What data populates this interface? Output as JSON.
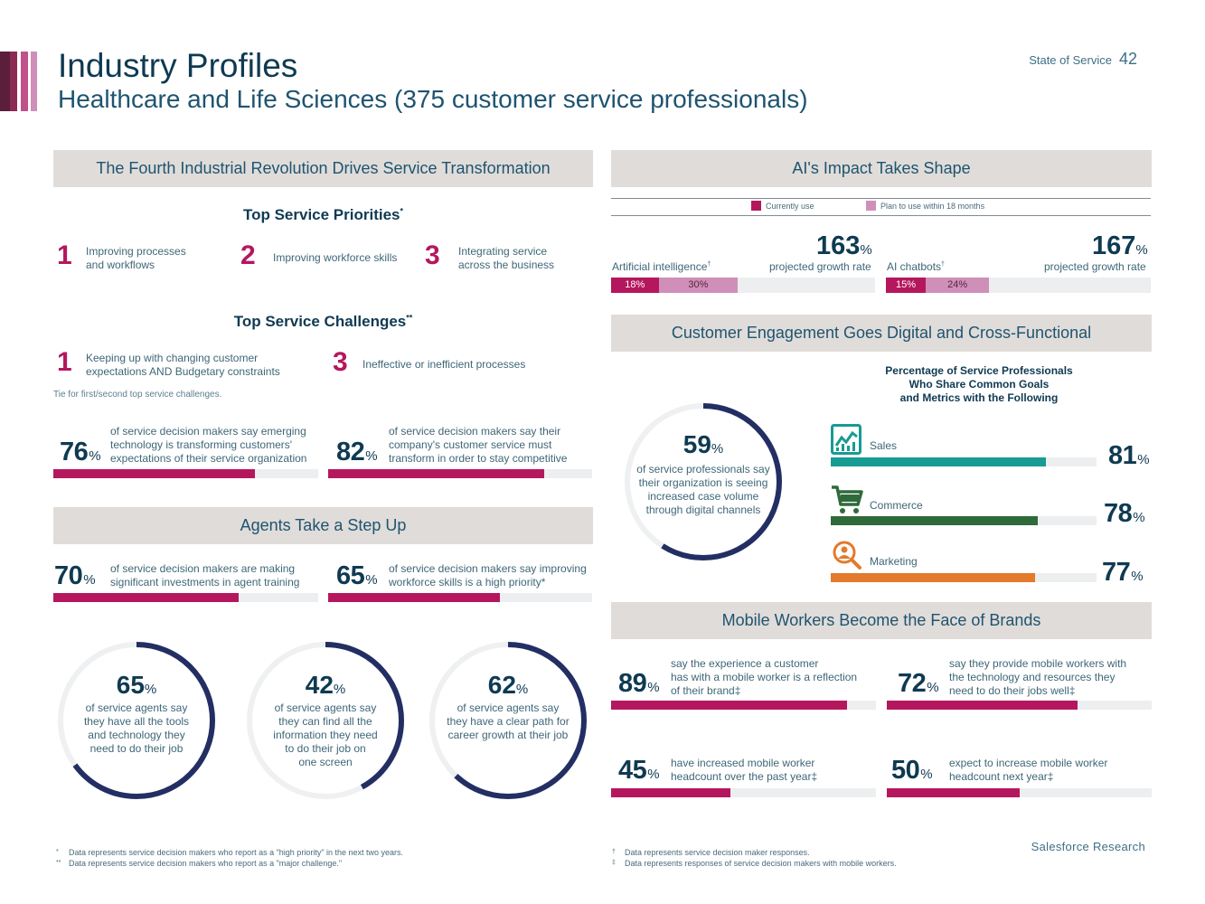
{
  "header": {
    "title": "Industry Profiles",
    "subtitle": "Healthcare and Life Sciences (375 customer service professionals)",
    "report_name": "State of Service",
    "page_number": "42"
  },
  "colors": {
    "magenta": "#b5175e",
    "pink": "#cf8fb8",
    "navy": "#232e63",
    "teal": "#179b93",
    "green": "#2f6b3a",
    "orange": "#e37a2c",
    "section_bg": "#e0dcd9"
  },
  "fourth_revolution": {
    "section_title": "The Fourth Industrial Revolution Drives Service Transformation",
    "priorities_heading": "Top Service Priorities",
    "priorities_mark": "*",
    "priorities": [
      {
        "rank": "1",
        "text_line1": "Improving processes",
        "text_line2": "and workflows"
      },
      {
        "rank": "2",
        "text_line1": "Improving workforce skills",
        "text_line2": ""
      },
      {
        "rank": "3",
        "text_line1": "Integrating service",
        "text_line2": "across the business"
      }
    ],
    "challenges_heading": "Top Service Challenges",
    "challenges_mark": "**",
    "challenges": [
      {
        "rank": "1",
        "text_line1": "Keeping up with changing customer",
        "text_line2": "expectations AND Budgetary constraints"
      },
      {
        "rank": "3",
        "text_line1": "Ineffective or inefficient processes",
        "text_line2": ""
      }
    ],
    "tie_note": "Tie for first/second top service challenges.",
    "stats": [
      {
        "value": "76",
        "percent": 76,
        "line1": "of service decision makers say emerging",
        "line2": "technology is transforming customers'",
        "line3": "expectations of their service organization"
      },
      {
        "value": "82",
        "percent": 82,
        "line1": "of service decision makers say their",
        "line2": "company's customer service must",
        "line3": "transform in order to stay competitive"
      }
    ]
  },
  "agents": {
    "section_title": "Agents Take a Step Up",
    "stats": [
      {
        "value": "70",
        "percent": 70,
        "line1": "of service decision makers are making",
        "line2": "significant investments in agent training"
      },
      {
        "value": "65",
        "percent": 65,
        "line1": "of service decision makers say improving",
        "line2": "workforce skills is a high priority*"
      }
    ],
    "rings": [
      {
        "value": "65",
        "percent": 65,
        "lines": [
          "of service agents say",
          "they have all the tools",
          "and technology they",
          "need to do their job"
        ]
      },
      {
        "value": "42",
        "percent": 42,
        "lines": [
          "of service agents say",
          "they can find all the",
          "information they need",
          "to do their job on",
          "one screen"
        ]
      },
      {
        "value": "62",
        "percent": 62,
        "lines": [
          "of service agents say",
          "they have a clear path for",
          "career growth at their job"
        ]
      }
    ]
  },
  "ai": {
    "section_title": "AI's Impact Takes Shape",
    "legend_current": "Currently use",
    "legend_plan": "Plan to use within 18 months",
    "items": [
      {
        "label": "Artificial intelligence",
        "mark": "†",
        "current": "18%",
        "current_value": 18,
        "plan": "30%",
        "plan_value": 30,
        "growth": "163",
        "growth_label": "projected growth rate"
      },
      {
        "label": "AI chatbots",
        "mark": "†",
        "current": "15%",
        "current_value": 15,
        "plan": "24%",
        "plan_value": 24,
        "growth": "167",
        "growth_label": "projected growth rate"
      }
    ]
  },
  "customer_engagement": {
    "section_title": "Customer Engagement Goes Digital and Cross-Functional",
    "ring": {
      "value": "59",
      "percent": 59,
      "lines": [
        "of service professionals say",
        "their organization is seeing",
        "increased case volume",
        "through digital channels"
      ]
    },
    "chart_heading_lines": [
      "Percentage of Service Professionals",
      "Who Share Common Goals",
      "and Metrics with the Following"
    ],
    "items": [
      {
        "label": "Sales",
        "value": "81",
        "percent": 81,
        "icon": "sales-chart-icon"
      },
      {
        "label": "Commerce",
        "value": "78",
        "percent": 78,
        "icon": "shopping-cart-icon"
      },
      {
        "label": "Marketing",
        "value": "77",
        "percent": 77,
        "icon": "magnifier-person-icon"
      }
    ]
  },
  "mobile": {
    "section_title": "Mobile Workers Become the Face of Brands",
    "stats": [
      {
        "value": "89",
        "percent": 89,
        "lines": [
          "say the experience a customer",
          "has with a mobile worker is a reflection",
          "of their brand‡"
        ]
      },
      {
        "value": "72",
        "percent": 72,
        "lines": [
          "say they provide mobile workers with",
          "the technology and resources they",
          "need to do their jobs well‡"
        ]
      },
      {
        "value": "45",
        "percent": 45,
        "lines": [
          "have increased mobile worker",
          "headcount over the past year‡"
        ]
      },
      {
        "value": "50",
        "percent": 50,
        "lines": [
          "expect to increase mobile worker",
          "headcount next year‡"
        ]
      }
    ]
  },
  "footnotes": {
    "left": [
      {
        "mark": "*",
        "text": "Data represents service decision makers who report as a \"high priority\" in the next two years."
      },
      {
        "mark": "**",
        "text": "Data represents service decision makers who report as a \"major challenge.\""
      }
    ],
    "right": [
      {
        "mark": "†",
        "text": "Data represents service decision maker responses."
      },
      {
        "mark": "‡",
        "text": "Data represents responses of service decision makers with mobile workers."
      }
    ]
  },
  "brand": "Salesforce Research"
}
